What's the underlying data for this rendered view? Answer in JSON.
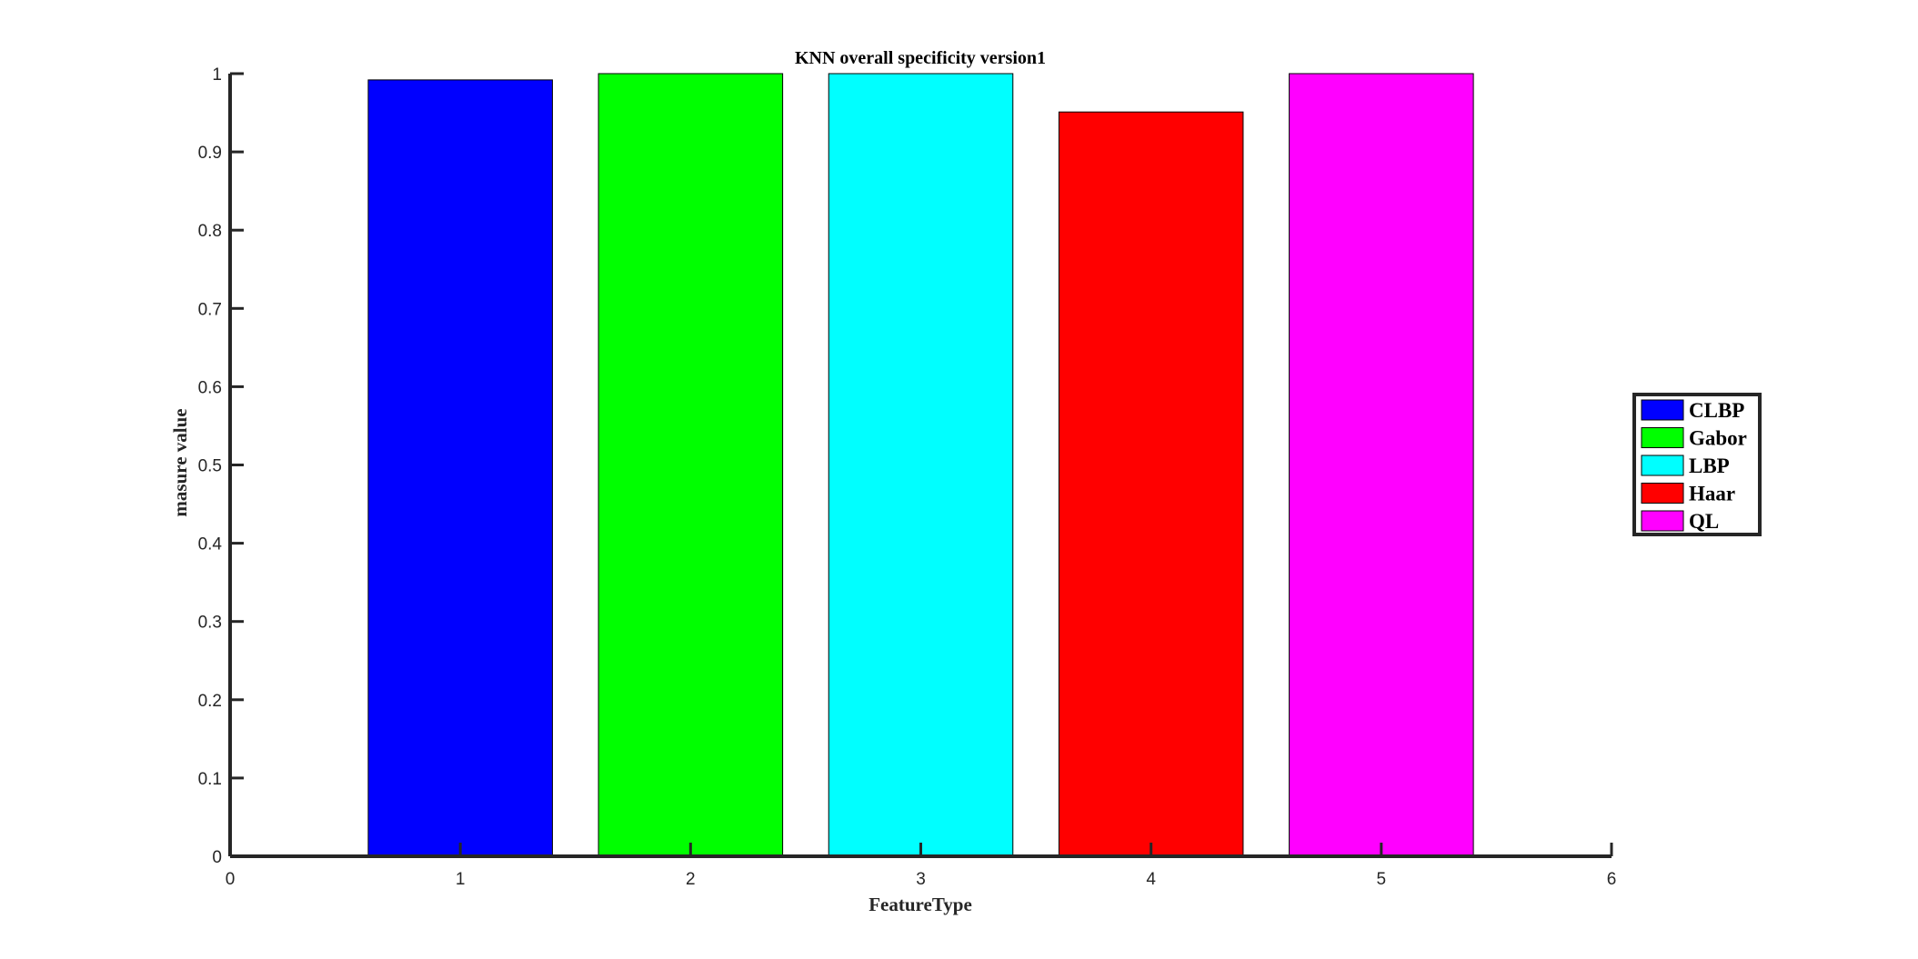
{
  "chart_data": {
    "type": "bar",
    "title": "KNN overall specificity version1",
    "xlabel": "FeatureType",
    "ylabel": "masure value",
    "x": [
      1,
      2,
      3,
      4,
      5
    ],
    "values": [
      0.992,
      1.0,
      1.0,
      0.951,
      1.0
    ],
    "xlim": [
      0,
      6
    ],
    "ylim": [
      0,
      1
    ],
    "xticks": [
      0,
      1,
      2,
      3,
      4,
      5,
      6
    ],
    "yticks": [
      0,
      0.1,
      0.2,
      0.3,
      0.4,
      0.5,
      0.6,
      0.7,
      0.8,
      0.9,
      1
    ],
    "bar_colors": [
      "#0000ff",
      "#00ff00",
      "#00ffff",
      "#ff0000",
      "#ff00ff"
    ],
    "legend": {
      "position": "right",
      "entries": [
        {
          "label": "CLBP",
          "color": "#0000ff"
        },
        {
          "label": "Gabor",
          "color": "#00ff00"
        },
        {
          "label": "LBP",
          "color": "#00ffff"
        },
        {
          "label": "Haar",
          "color": "#ff0000"
        },
        {
          "label": "QL",
          "color": "#ff00ff"
        }
      ]
    },
    "grid": false
  }
}
